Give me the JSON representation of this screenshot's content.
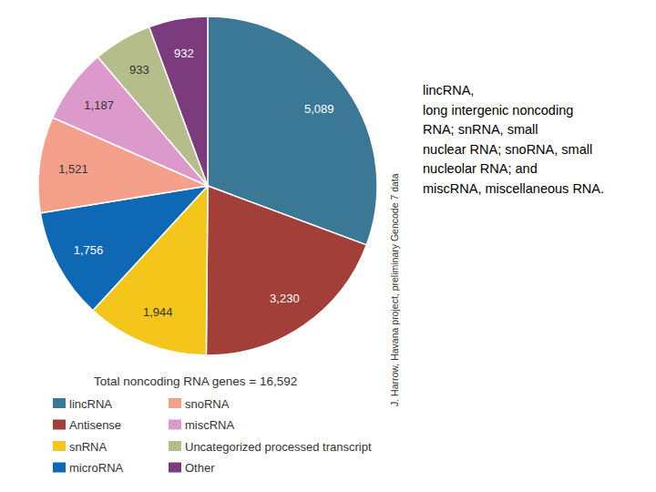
{
  "chart_data": {
    "type": "pie",
    "title": "Total noncoding RNA genes = 16,592",
    "categories": [
      "lincRNA",
      "Antisense",
      "snRNA",
      "microRNA",
      "snoRNA",
      "miscRNA",
      "Uncategorized processed transcript",
      "Other"
    ],
    "values": [
      5089,
      3230,
      1944,
      1756,
      1521,
      1187,
      933,
      932
    ],
    "value_labels": [
      "5,089",
      "3,230",
      "1,944",
      "1,756",
      "1,521",
      "1,187",
      "933",
      "932"
    ],
    "colors": [
      "#3b7896",
      "#a13f38",
      "#f4c51a",
      "#0f68b3",
      "#f5a08b",
      "#dc99cb",
      "#b5bd8a",
      "#7b3b7d"
    ],
    "data_labels": true,
    "legend": "bottom",
    "annotation": [
      "lincRNA,",
      "long intergenic noncoding",
      "RNA; snRNA, small",
      "nuclear RNA; snoRNA, small",
      "nucleolar RNA; and",
      "miscRNA, miscellaneous RNA."
    ],
    "source": "J. Harrow, Havana project, preliminary Gencode 7 data"
  }
}
